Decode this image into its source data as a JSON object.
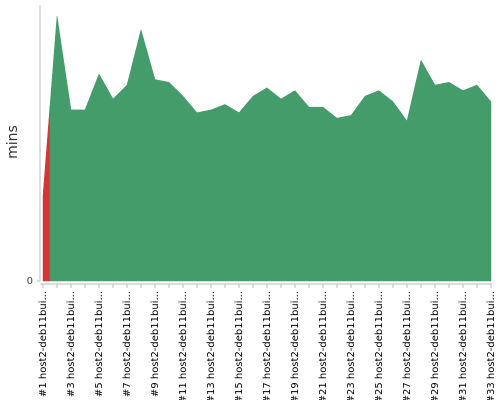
{
  "chart_data": {
    "type": "area",
    "y_label": "mins",
    "categories": [
      "#1 host2-deb11bui...",
      null,
      "#3 host2-deb11bui...",
      null,
      "#5 host2-deb11bui...",
      null,
      "#7 host2-deb11bui...",
      null,
      "#9 host2-deb11bui...",
      null,
      "#11 host2-deb11bui...",
      null,
      "#13 host2-deb11bui...",
      null,
      "#15 host2-deb11bui...",
      null,
      "#17 host2-deb11bui...",
      null,
      "#19 host2-deb11bui...",
      null,
      "#21 host2-deb11bui...",
      null,
      "#23 host2-deb11bui...",
      null,
      "#25 host2-deb11bui...",
      null,
      "#27 host2-deb11bui...",
      null,
      "#29 host2-deb11bui...",
      null,
      "#31 host2-deb11bui...",
      null,
      "#33 host2-deb11bui..."
    ],
    "values": [
      31,
      96,
      62,
      62,
      75,
      66,
      71,
      91,
      73,
      72,
      67,
      61,
      62,
      64,
      61,
      67,
      70,
      66,
      69,
      63,
      63,
      59,
      60,
      67,
      69,
      65,
      58,
      80,
      71,
      72,
      69,
      71,
      65
    ],
    "colors": [
      "#d73535",
      "#449c6b",
      "#449c6b",
      "#449c6b",
      "#449c6b",
      "#449c6b",
      "#449c6b",
      "#449c6b",
      "#449c6b",
      "#449c6b",
      "#449c6b",
      "#449c6b",
      "#449c6b",
      "#449c6b",
      "#449c6b",
      "#449c6b",
      "#449c6b",
      "#449c6b",
      "#449c6b",
      "#449c6b",
      "#449c6b",
      "#449c6b",
      "#449c6b",
      "#449c6b",
      "#449c6b",
      "#449c6b",
      "#449c6b",
      "#449c6b",
      "#449c6b",
      "#449c6b",
      "#449c6b",
      "#449c6b",
      "#449c6b"
    ],
    "ylim": [
      0,
      100
    ],
    "yticks": [
      0
    ]
  }
}
